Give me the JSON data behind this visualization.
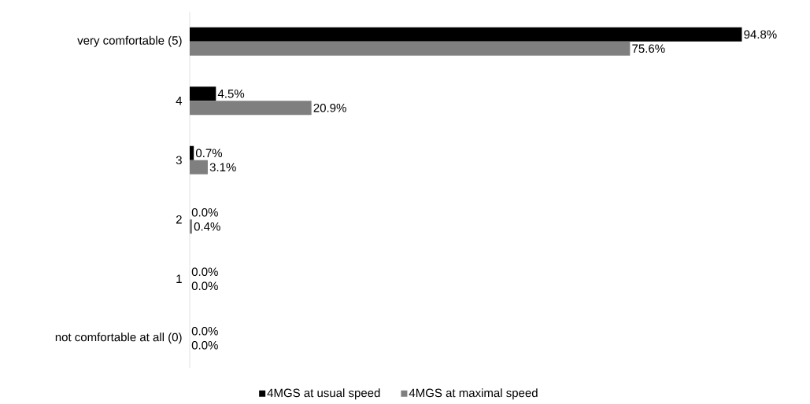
{
  "chart_data": {
    "type": "bar",
    "orientation": "horizontal",
    "legend": "bottom",
    "categories": [
      "very comfortable (5)",
      "4",
      "3",
      "2",
      "1",
      "not comfortable at all (0)"
    ],
    "series": [
      {
        "name": "4MGS at usual speed",
        "color": "#000000",
        "values": [
          94.8,
          4.5,
          0.7,
          0.0,
          0.0,
          0.0
        ],
        "value_labels": [
          "94.8%",
          "4.5%",
          "0.7%",
          "0.0%",
          "0.0%",
          "0.0%"
        ]
      },
      {
        "name": "4MGS at maximal speed",
        "color": "#7f7f7f",
        "values": [
          75.6,
          20.9,
          3.1,
          0.4,
          0.0,
          0.0
        ],
        "value_labels": [
          "75.6%",
          "20.9%",
          "3.1%",
          "0.4%",
          "0.0%",
          "0.0%"
        ]
      }
    ]
  }
}
